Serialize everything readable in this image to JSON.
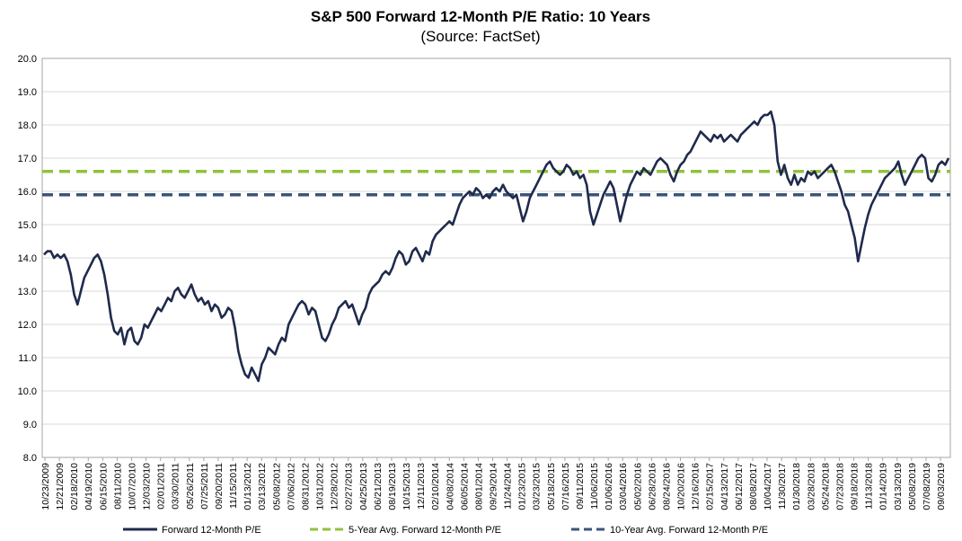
{
  "chart_data": {
    "type": "line",
    "title": "S&P 500 Forward 12-Month P/E Ratio: 10 Years",
    "subtitle": "(Source: FactSet)",
    "ylim": [
      8.0,
      20.0
    ],
    "yticks": [
      "8.0",
      "9.0",
      "10.0",
      "11.0",
      "12.0",
      "13.0",
      "14.0",
      "15.0",
      "16.0",
      "17.0",
      "18.0",
      "19.0",
      "20.0"
    ],
    "grid": "horizontal",
    "legend_position": "bottom",
    "x_tick_labels": [
      "10/23/2009",
      "12/21/2009",
      "02/18/2010",
      "04/19/2010",
      "06/15/2010",
      "08/11/2010",
      "10/07/2010",
      "12/03/2010",
      "02/01/2011",
      "03/30/2011",
      "05/26/2011",
      "07/25/2011",
      "09/20/2011",
      "11/15/2011",
      "01/13/2012",
      "03/13/2012",
      "05/08/2012",
      "07/06/2012",
      "08/31/2012",
      "10/31/2012",
      "12/28/2012",
      "02/27/2013",
      "04/25/2013",
      "06/21/2013",
      "08/19/2013",
      "10/15/2013",
      "12/11/2013",
      "02/10/2014",
      "04/08/2014",
      "06/05/2014",
      "08/01/2014",
      "09/29/2014",
      "11/24/2014",
      "01/23/2015",
      "03/23/2015",
      "05/18/2015",
      "07/16/2015",
      "09/11/2015",
      "11/06/2015",
      "01/06/2016",
      "03/04/2016",
      "05/02/2016",
      "06/28/2016",
      "08/24/2016",
      "10/20/2016",
      "12/16/2016",
      "02/15/2017",
      "04/13/2017",
      "06/12/2017",
      "08/08/2017",
      "10/04/2017",
      "11/30/2017",
      "01/30/2018",
      "03/28/2018",
      "05/24/2018",
      "07/23/2018",
      "09/18/2018",
      "11/13/2018",
      "01/14/2019",
      "03/13/2019",
      "05/08/2019",
      "07/08/2019",
      "09/03/2019"
    ],
    "series": [
      {
        "name": "Forward 12-Month P/E",
        "color": "#1f2a4d",
        "style": "solid",
        "values": [
          14.1,
          14.2,
          14.2,
          14.0,
          14.1,
          14.0,
          14.1,
          13.9,
          13.5,
          12.9,
          12.6,
          13.0,
          13.4,
          13.6,
          13.8,
          14.0,
          14.1,
          13.9,
          13.5,
          12.9,
          12.2,
          11.8,
          11.7,
          11.9,
          11.4,
          11.8,
          11.9,
          11.5,
          11.4,
          11.6,
          12.0,
          11.9,
          12.1,
          12.3,
          12.5,
          12.4,
          12.6,
          12.8,
          12.7,
          13.0,
          13.1,
          12.9,
          12.8,
          13.0,
          13.2,
          12.9,
          12.7,
          12.8,
          12.6,
          12.7,
          12.4,
          12.6,
          12.5,
          12.2,
          12.3,
          12.5,
          12.4,
          11.9,
          11.2,
          10.8,
          10.5,
          10.4,
          10.7,
          10.5,
          10.3,
          10.8,
          11.0,
          11.3,
          11.2,
          11.1,
          11.4,
          11.6,
          11.5,
          12.0,
          12.2,
          12.4,
          12.6,
          12.7,
          12.6,
          12.3,
          12.5,
          12.4,
          12.0,
          11.6,
          11.5,
          11.7,
          12.0,
          12.2,
          12.5,
          12.6,
          12.7,
          12.5,
          12.6,
          12.3,
          12.0,
          12.3,
          12.5,
          12.9,
          13.1,
          13.2,
          13.3,
          13.5,
          13.6,
          13.5,
          13.7,
          14.0,
          14.2,
          14.1,
          13.8,
          13.9,
          14.2,
          14.3,
          14.1,
          13.9,
          14.2,
          14.1,
          14.5,
          14.7,
          14.8,
          14.9,
          15.0,
          15.1,
          15.0,
          15.3,
          15.6,
          15.8,
          15.9,
          16.0,
          15.9,
          16.1,
          16.0,
          15.8,
          15.9,
          15.8,
          16.0,
          16.1,
          16.0,
          16.2,
          16.0,
          15.9,
          15.8,
          15.9,
          15.5,
          15.1,
          15.4,
          15.8,
          16.0,
          16.2,
          16.4,
          16.6,
          16.8,
          16.9,
          16.7,
          16.6,
          16.5,
          16.6,
          16.8,
          16.7,
          16.5,
          16.6,
          16.4,
          16.5,
          16.2,
          15.4,
          15.0,
          15.3,
          15.6,
          15.9,
          16.1,
          16.3,
          16.1,
          15.6,
          15.1,
          15.5,
          15.9,
          16.2,
          16.4,
          16.6,
          16.5,
          16.7,
          16.6,
          16.5,
          16.7,
          16.9,
          17.0,
          16.9,
          16.8,
          16.5,
          16.3,
          16.6,
          16.8,
          16.9,
          17.1,
          17.2,
          17.4,
          17.6,
          17.8,
          17.7,
          17.6,
          17.5,
          17.7,
          17.6,
          17.7,
          17.5,
          17.6,
          17.7,
          17.6,
          17.5,
          17.7,
          17.8,
          17.9,
          18.0,
          18.1,
          18.0,
          18.2,
          18.3,
          18.3,
          18.4,
          18.0,
          16.9,
          16.5,
          16.8,
          16.4,
          16.2,
          16.5,
          16.2,
          16.4,
          16.3,
          16.6,
          16.5,
          16.6,
          16.4,
          16.5,
          16.6,
          16.7,
          16.8,
          16.6,
          16.3,
          16.0,
          15.6,
          15.4,
          15.0,
          14.6,
          13.9,
          14.4,
          14.9,
          15.3,
          15.6,
          15.8,
          16.0,
          16.2,
          16.4,
          16.5,
          16.6,
          16.7,
          16.9,
          16.5,
          16.2,
          16.4,
          16.6,
          16.8,
          17.0,
          17.1,
          17.0,
          16.4,
          16.3,
          16.5,
          16.8,
          16.9,
          16.8,
          17.0
        ]
      },
      {
        "name": "5-Year Avg. Forward 12-Month P/E",
        "color": "#92c13e",
        "style": "dashed",
        "value": 16.6
      },
      {
        "name": "10-Year Avg. Forward 12-Month P/E",
        "color": "#3a5579",
        "style": "dashed",
        "value": 15.9
      }
    ]
  }
}
